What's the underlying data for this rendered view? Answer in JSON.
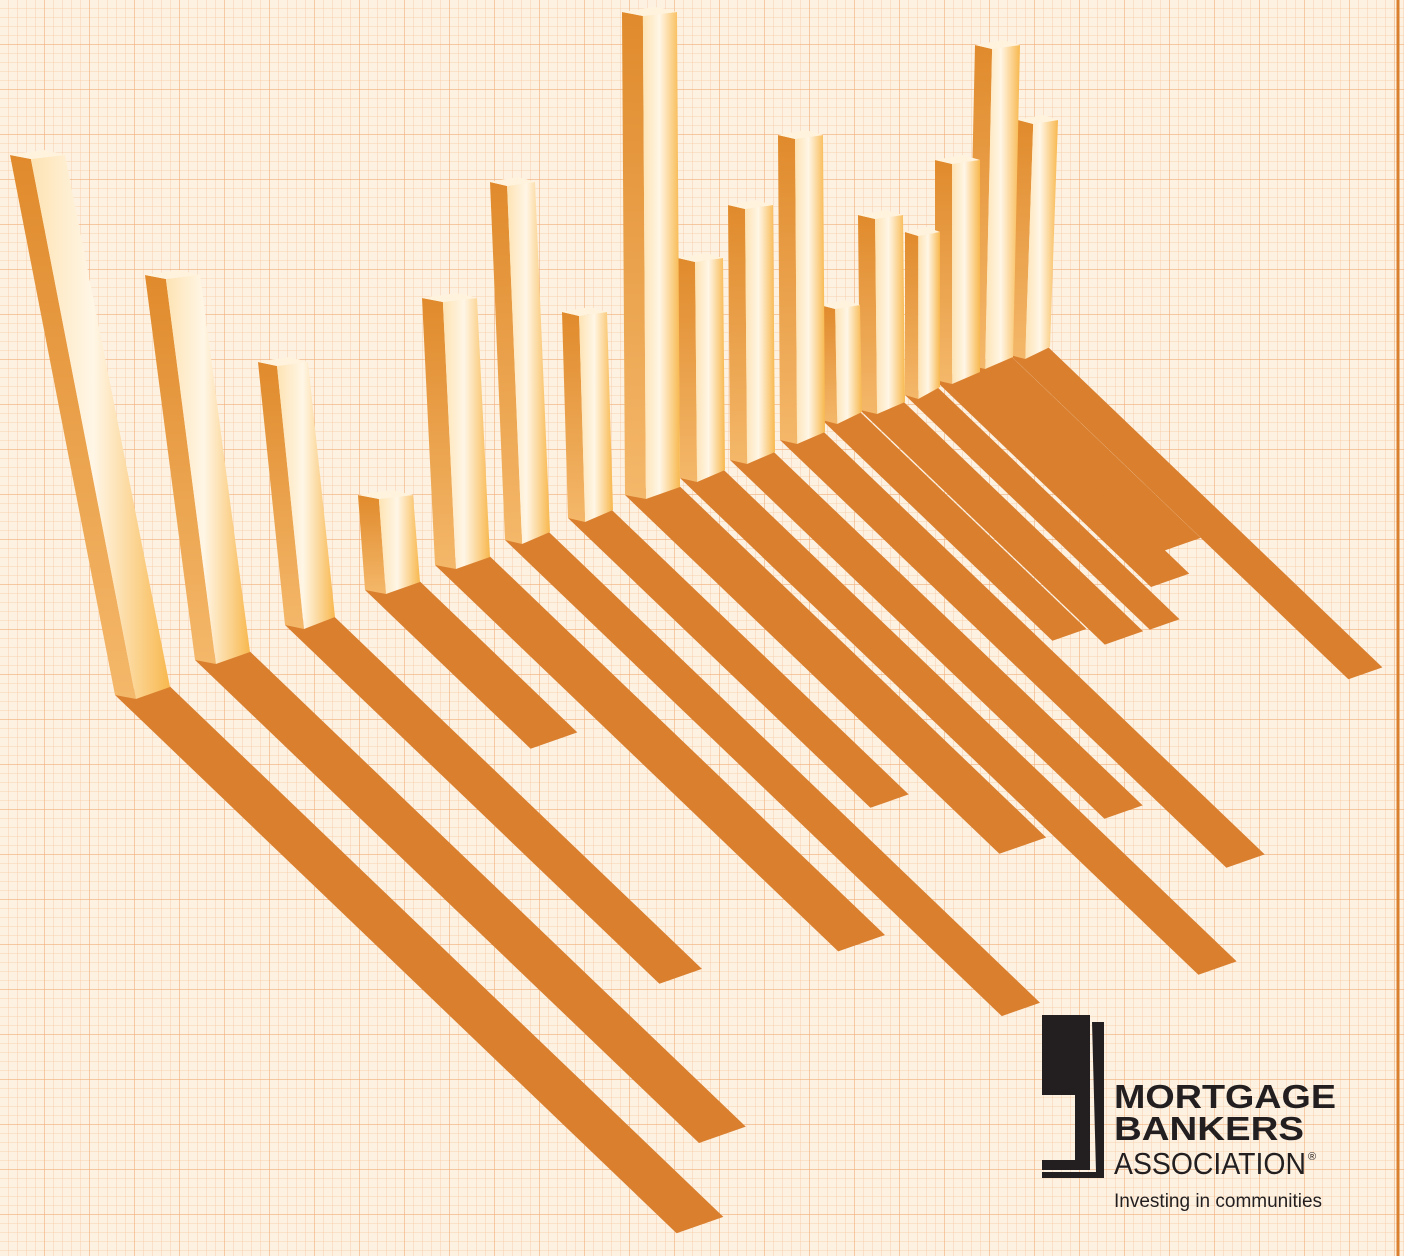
{
  "logo": {
    "line1": "MORTGAGE",
    "line2": "BANKERS",
    "line3": "ASSOCIATION",
    "registered": "®",
    "tagline": "Investing in communities"
  }
}
